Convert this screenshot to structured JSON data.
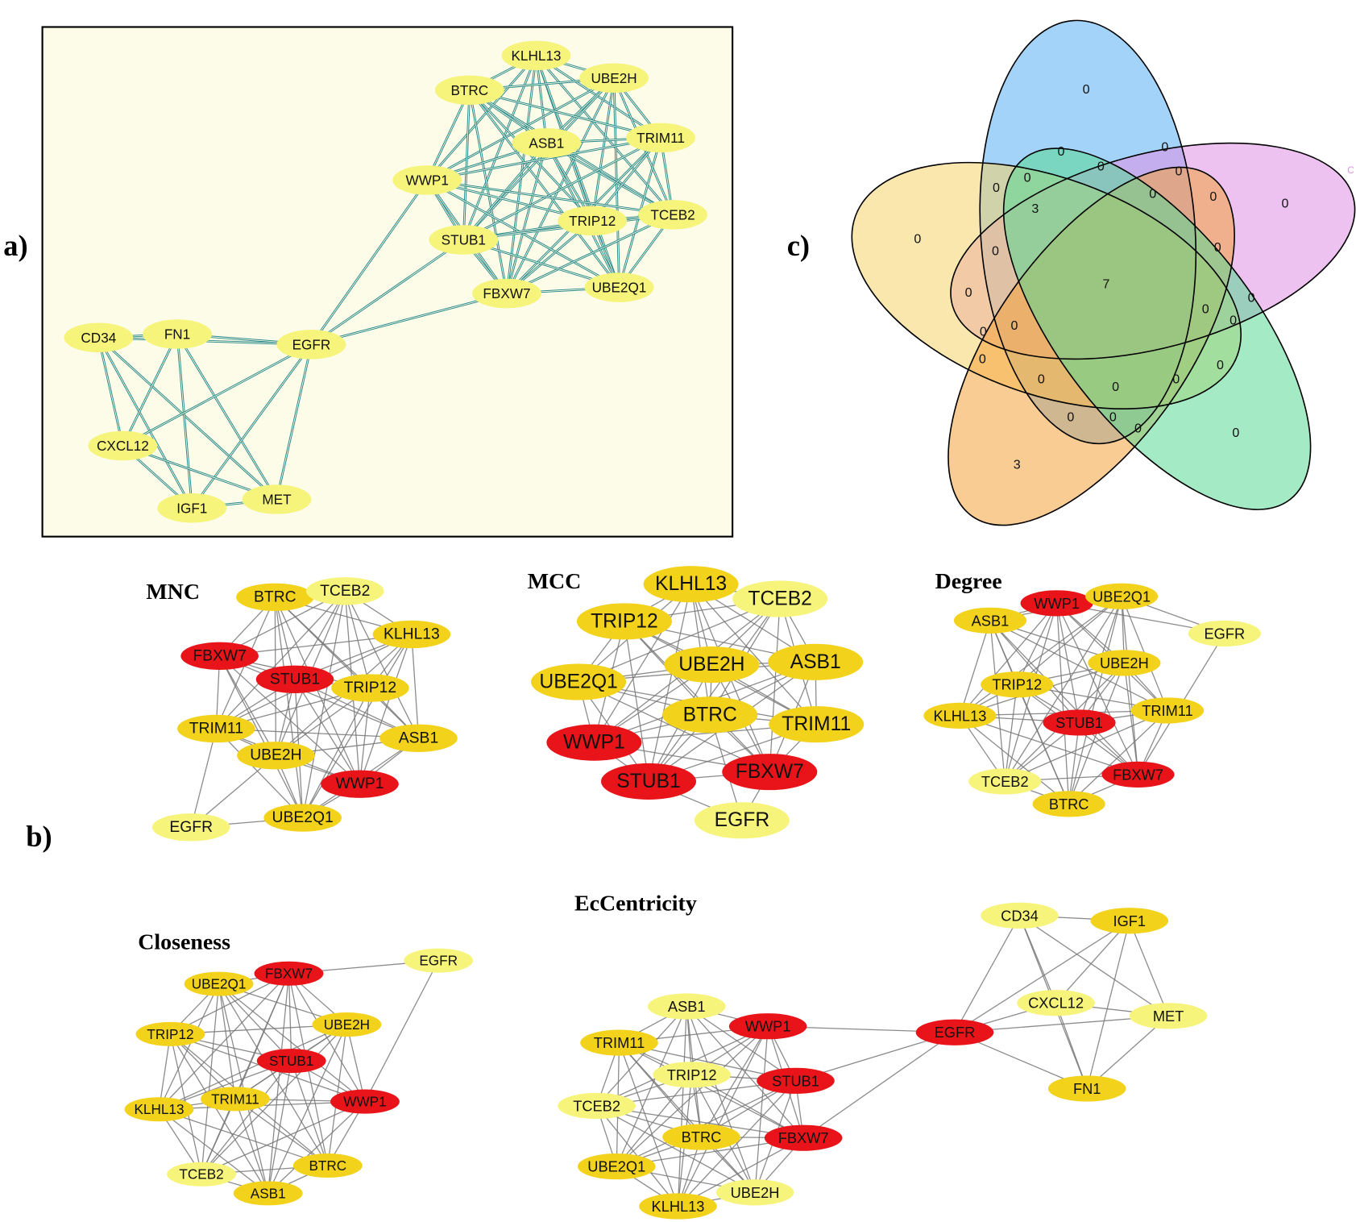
{
  "panel_labels": {
    "a": "a)",
    "b": "b)",
    "c": "c)"
  },
  "colors": {
    "red": "#e8141a",
    "gold": "#f2d21b",
    "light": "#f6f47a",
    "panel_a_bg": "#fcfce8",
    "panel_a_edge": "#2b8a8a",
    "panel_b_edge": "#777777"
  },
  "networks": [
    {
      "id": "a",
      "title": "",
      "nodes": [
        {
          "label": "KLHL13",
          "color": "light"
        },
        {
          "label": "UBE2H",
          "color": "light"
        },
        {
          "label": "BTRC",
          "color": "light"
        },
        {
          "label": "ASB1",
          "color": "light"
        },
        {
          "label": "TRIM11",
          "color": "light"
        },
        {
          "label": "WWP1",
          "color": "light"
        },
        {
          "label": "TRIP12",
          "color": "light"
        },
        {
          "label": "TCEB2",
          "color": "light"
        },
        {
          "label": "STUB1",
          "color": "light"
        },
        {
          "label": "FBXW7",
          "color": "light"
        },
        {
          "label": "UBE2Q1",
          "color": "light"
        },
        {
          "label": "CD34",
          "color": "light"
        },
        {
          "label": "FN1",
          "color": "light"
        },
        {
          "label": "EGFR",
          "color": "light"
        },
        {
          "label": "CXCL12",
          "color": "light"
        },
        {
          "label": "IGF1",
          "color": "light"
        },
        {
          "label": "MET",
          "color": "light"
        }
      ],
      "cliques": [
        [
          "KLHL13",
          "UBE2H",
          "BTRC",
          "ASB1",
          "TRIM11",
          "WWP1",
          "TRIP12",
          "TCEB2",
          "STUB1",
          "FBXW7",
          "UBE2Q1"
        ],
        [
          "CD34",
          "FN1",
          "EGFR",
          "CXCL12",
          "IGF1",
          "MET"
        ]
      ],
      "edges": [
        [
          "EGFR",
          "WWP1"
        ],
        [
          "EGFR",
          "STUB1"
        ],
        [
          "EGFR",
          "FBXW7"
        ]
      ]
    },
    {
      "id": "mnc",
      "title": "MNC",
      "nodes": [
        {
          "label": "BTRC",
          "color": "gold"
        },
        {
          "label": "TCEB2",
          "color": "light"
        },
        {
          "label": "KLHL13",
          "color": "gold"
        },
        {
          "label": "FBXW7",
          "color": "red"
        },
        {
          "label": "STUB1",
          "color": "red"
        },
        {
          "label": "TRIP12",
          "color": "gold"
        },
        {
          "label": "TRIM11",
          "color": "gold"
        },
        {
          "label": "ASB1",
          "color": "gold"
        },
        {
          "label": "UBE2H",
          "color": "gold"
        },
        {
          "label": "WWP1",
          "color": "red"
        },
        {
          "label": "UBE2Q1",
          "color": "gold"
        },
        {
          "label": "EGFR",
          "color": "light"
        }
      ],
      "cliques": [
        [
          "BTRC",
          "TCEB2",
          "KLHL13",
          "FBXW7",
          "STUB1",
          "TRIP12",
          "TRIM11",
          "ASB1",
          "UBE2H",
          "WWP1",
          "UBE2Q1"
        ]
      ],
      "edges": [
        [
          "EGFR",
          "TRIM11"
        ],
        [
          "EGFR",
          "UBE2H"
        ],
        [
          "EGFR",
          "UBE2Q1"
        ]
      ]
    },
    {
      "id": "mcc",
      "title": "MCC",
      "nodes": [
        {
          "label": "KLHL13",
          "color": "gold"
        },
        {
          "label": "TCEB2",
          "color": "light"
        },
        {
          "label": "TRIP12",
          "color": "gold"
        },
        {
          "label": "UBE2H",
          "color": "gold"
        },
        {
          "label": "ASB1",
          "color": "gold"
        },
        {
          "label": "UBE2Q1",
          "color": "gold"
        },
        {
          "label": "BTRC",
          "color": "gold"
        },
        {
          "label": "TRIM11",
          "color": "gold"
        },
        {
          "label": "WWP1",
          "color": "red"
        },
        {
          "label": "FBXW7",
          "color": "red"
        },
        {
          "label": "STUB1",
          "color": "red"
        },
        {
          "label": "EGFR",
          "color": "light"
        }
      ],
      "cliques": [
        [
          "KLHL13",
          "TCEB2",
          "TRIP12",
          "UBE2H",
          "ASB1",
          "UBE2Q1",
          "BTRC",
          "TRIM11",
          "WWP1",
          "FBXW7",
          "STUB1"
        ]
      ],
      "edges": [
        [
          "EGFR",
          "STUB1"
        ],
        [
          "EGFR",
          "FBXW7"
        ],
        [
          "EGFR",
          "BTRC"
        ]
      ]
    },
    {
      "id": "degree",
      "title": "Degree",
      "nodes": [
        {
          "label": "WWP1",
          "color": "red"
        },
        {
          "label": "UBE2Q1",
          "color": "gold"
        },
        {
          "label": "ASB1",
          "color": "gold"
        },
        {
          "label": "EGFR",
          "color": "light"
        },
        {
          "label": "UBE2H",
          "color": "gold"
        },
        {
          "label": "TRIP12",
          "color": "gold"
        },
        {
          "label": "TRIM11",
          "color": "gold"
        },
        {
          "label": "KLHL13",
          "color": "gold"
        },
        {
          "label": "STUB1",
          "color": "red"
        },
        {
          "label": "FBXW7",
          "color": "red"
        },
        {
          "label": "TCEB2",
          "color": "light"
        },
        {
          "label": "BTRC",
          "color": "gold"
        }
      ],
      "cliques": [
        [
          "WWP1",
          "UBE2Q1",
          "ASB1",
          "UBE2H",
          "TRIP12",
          "TRIM11",
          "KLHL13",
          "STUB1",
          "FBXW7",
          "TCEB2",
          "BTRC"
        ]
      ],
      "edges": [
        [
          "EGFR",
          "UBE2Q1"
        ],
        [
          "EGFR",
          "FBXW7"
        ],
        [
          "EGFR",
          "WWP1"
        ]
      ]
    },
    {
      "id": "closeness",
      "title": "Closeness",
      "nodes": [
        {
          "label": "EGFR",
          "color": "light"
        },
        {
          "label": "FBXW7",
          "color": "red"
        },
        {
          "label": "UBE2Q1",
          "color": "gold"
        },
        {
          "label": "UBE2H",
          "color": "gold"
        },
        {
          "label": "TRIP12",
          "color": "gold"
        },
        {
          "label": "STUB1",
          "color": "red"
        },
        {
          "label": "WWP1",
          "color": "red"
        },
        {
          "label": "TRIM11",
          "color": "gold"
        },
        {
          "label": "KLHL13",
          "color": "gold"
        },
        {
          "label": "BTRC",
          "color": "gold"
        },
        {
          "label": "TCEB2",
          "color": "light"
        },
        {
          "label": "ASB1",
          "color": "gold"
        }
      ],
      "cliques": [
        [
          "FBXW7",
          "UBE2Q1",
          "UBE2H",
          "TRIP12",
          "STUB1",
          "WWP1",
          "TRIM11",
          "KLHL13",
          "BTRC",
          "TCEB2",
          "ASB1"
        ]
      ],
      "edges": [
        [
          "EGFR",
          "FBXW7"
        ],
        [
          "EGFR",
          "WWP1"
        ]
      ]
    },
    {
      "id": "eccentricity",
      "title": "EcCentricity",
      "nodes": [
        {
          "label": "CD34",
          "color": "light"
        },
        {
          "label": "IGF1",
          "color": "gold"
        },
        {
          "label": "CXCL12",
          "color": "light"
        },
        {
          "label": "MET",
          "color": "light"
        },
        {
          "label": "EGFR",
          "color": "red"
        },
        {
          "label": "FN1",
          "color": "gold"
        },
        {
          "label": "ASB1",
          "color": "light"
        },
        {
          "label": "WWP1",
          "color": "red"
        },
        {
          "label": "TRIM11",
          "color": "gold"
        },
        {
          "label": "TRIP12",
          "color": "light"
        },
        {
          "label": "STUB1",
          "color": "red"
        },
        {
          "label": "TCEB2",
          "color": "light"
        },
        {
          "label": "BTRC",
          "color": "gold"
        },
        {
          "label": "FBXW7",
          "color": "red"
        },
        {
          "label": "UBE2Q1",
          "color": "gold"
        },
        {
          "label": "UBE2H",
          "color": "light"
        },
        {
          "label": "KLHL13",
          "color": "gold"
        }
      ],
      "cliques": [
        [
          "ASB1",
          "WWP1",
          "TRIM11",
          "TRIP12",
          "STUB1",
          "TCEB2",
          "BTRC",
          "FBXW7",
          "UBE2Q1",
          "UBE2H",
          "KLHL13"
        ],
        [
          "CD34",
          "IGF1",
          "CXCL12",
          "MET",
          "EGFR",
          "FN1"
        ]
      ],
      "edges": [
        [
          "EGFR",
          "WWP1"
        ],
        [
          "EGFR",
          "STUB1"
        ],
        [
          "EGFR",
          "FBXW7"
        ]
      ]
    }
  ],
  "venn": {
    "set_colors": [
      "#58aef2",
      "#e090e4",
      "#f6d46a",
      "#f4a23c",
      "#5ad894"
    ],
    "corner_label": "C",
    "region_counts": [
      0,
      0,
      0,
      0,
      0,
      0,
      0,
      3,
      0,
      0,
      0,
      0,
      0,
      0,
      7,
      0,
      0,
      0,
      0,
      0,
      0,
      0,
      0,
      0,
      0,
      0,
      0,
      0,
      0,
      0,
      3
    ]
  }
}
